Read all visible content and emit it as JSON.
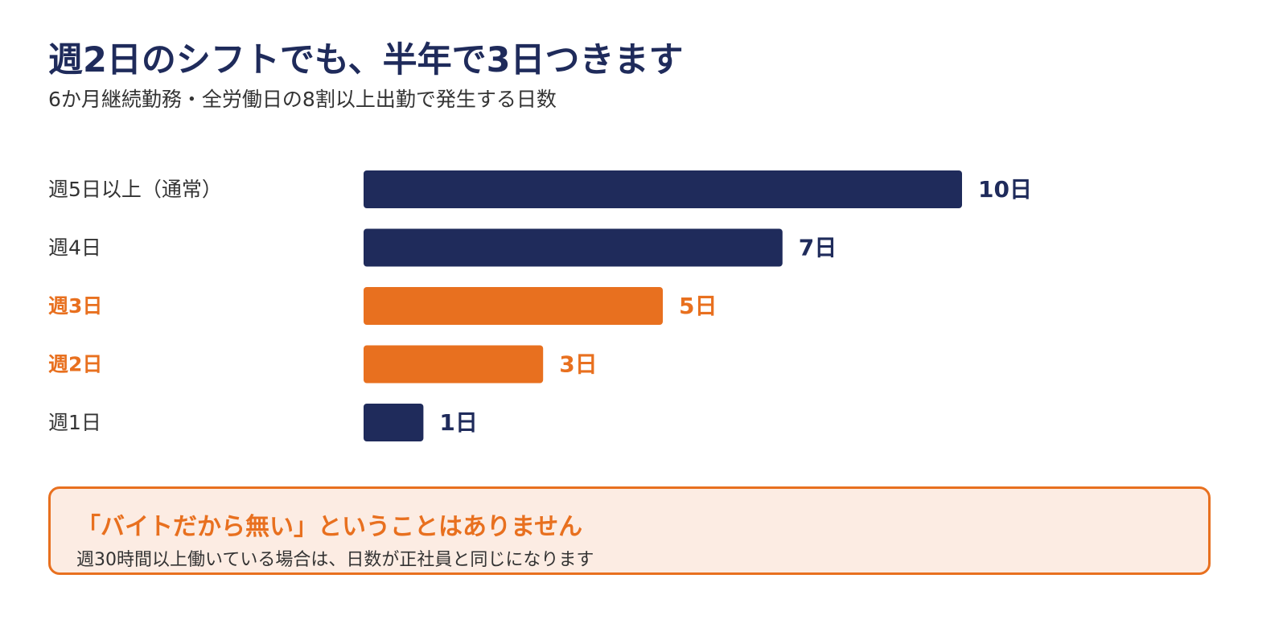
{
  "title": "週2日のシフトでも、半年で3日つきます",
  "subtitle": "6か月継続勤務・全労働日の8割以上出勤で発生する日数",
  "colors": {
    "navy": "#1f2b5b",
    "orange": "#e8701f",
    "callout_bg": "#fcece3",
    "text": "#333333"
  },
  "chart_data": {
    "type": "bar",
    "orientation": "horizontal",
    "categories": [
      "週5日以上（通常）",
      "週4日",
      "週3日",
      "週2日",
      "週1日"
    ],
    "values": [
      10,
      7,
      5,
      3,
      1
    ],
    "value_labels": [
      "10日",
      "7日",
      "5日",
      "3日",
      "1日"
    ],
    "highlighted": [
      false,
      false,
      true,
      true,
      false
    ],
    "unit": "日",
    "xlim": [
      0,
      10
    ],
    "grid": false
  },
  "callout": {
    "title": "「バイトだから無い」ということはありません",
    "text": "週30時間以上働いている場合は、日数が正社員と同じになります"
  }
}
